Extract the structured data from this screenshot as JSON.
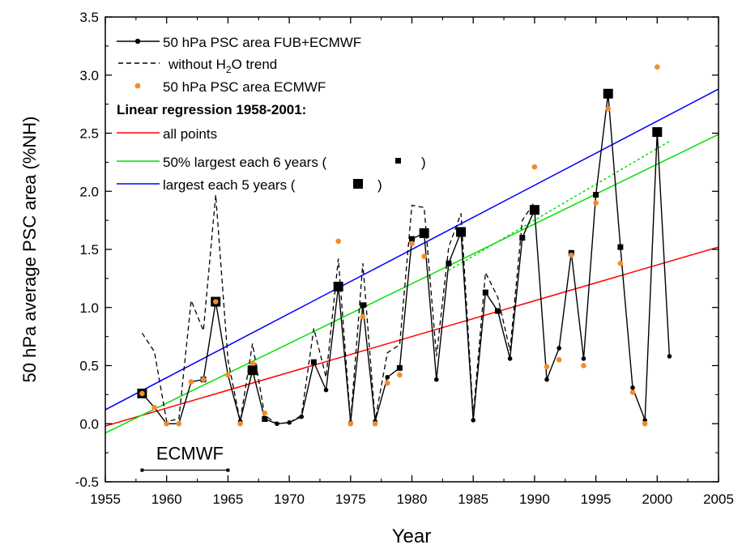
{
  "chart_data": {
    "type": "line",
    "xlabel": "Year",
    "ylabel": "50 hPa average PSC area (%NH)",
    "xlim": [
      1955,
      2005
    ],
    "ylim": [
      -0.5,
      3.5
    ],
    "x_ticks": [
      "1955",
      "1960",
      "1965",
      "1970",
      "1975",
      "1980",
      "1985",
      "1990",
      "1995",
      "2000",
      "2005"
    ],
    "y_ticks": [
      "-0.5",
      "0.0",
      "0.5",
      "1.0",
      "1.5",
      "2.0",
      "2.5",
      "3.0",
      "3.5"
    ],
    "grid": false,
    "legend_position": "top-left",
    "legend": {
      "fub": "50 hPa PSC area FUB+ECMWF",
      "no_trend_prefix": "without H",
      "no_trend_sub": "2",
      "no_trend_suffix": "O trend",
      "ecmwf": "50 hPa PSC area ECMWF",
      "regression_title": "Linear regression 1958-2001:",
      "all_points": "all points",
      "largest6_prefix": "50% largest each 6 years (",
      "largest6_suffix": ")",
      "largest5_prefix": "largest each 5 years (",
      "largest5_suffix": ")"
    },
    "annotation": {
      "label": "ECMWF",
      "from": 1958,
      "to": 1965,
      "y": -0.4
    },
    "colors": {
      "series": "#000000",
      "ecmwf_dots": "#f28c28",
      "all_points": "#ff0000",
      "largest6": "#00e000",
      "largest5": "#0000ff"
    },
    "series": [
      {
        "name": "50 hPa PSC area FUB+ECMWF",
        "x": [
          1958,
          1959,
          1960,
          1961,
          1962,
          1963,
          1964,
          1965,
          1966,
          1967,
          1968,
          1969,
          1970,
          1971,
          1972,
          1973,
          1974,
          1975,
          1976,
          1977,
          1978,
          1979,
          1980,
          1981,
          1982,
          1983,
          1984,
          1985,
          1986,
          1987,
          1988,
          1989,
          1990,
          1991,
          1992,
          1993,
          1994,
          1995,
          1996,
          1997,
          1998,
          1999,
          2000,
          2001
        ],
        "y": [
          0.26,
          0.14,
          0.0,
          0.0,
          0.36,
          0.38,
          1.05,
          0.42,
          0.02,
          0.46,
          0.04,
          0.0,
          0.01,
          0.06,
          0.53,
          0.29,
          1.18,
          0.01,
          1.02,
          0.02,
          0.4,
          0.48,
          1.59,
          1.64,
          0.38,
          1.38,
          1.65,
          0.03,
          1.13,
          0.97,
          0.56,
          1.6,
          1.84,
          0.38,
          0.65,
          1.47,
          0.56,
          1.97,
          2.84,
          1.52,
          0.31,
          0.03,
          2.51,
          0.58
        ]
      },
      {
        "name": "without H2O trend",
        "x": [
          1958,
          1959,
          1960,
          1961,
          1962,
          1963,
          1964,
          1965,
          1966,
          1967,
          1968,
          1969,
          1970,
          1971,
          1972,
          1973,
          1974,
          1975,
          1976,
          1977,
          1978,
          1979,
          1980,
          1981,
          1982,
          1983,
          1984,
          1985,
          1986,
          1987,
          1988,
          1989,
          1990
        ],
        "y": [
          0.78,
          0.62,
          0.02,
          0.04,
          1.06,
          0.8,
          1.97,
          0.55,
          0.02,
          0.69,
          0.07,
          0.0,
          0.01,
          0.07,
          0.82,
          0.4,
          1.42,
          0.02,
          1.38,
          0.03,
          0.61,
          0.68,
          1.88,
          1.86,
          0.58,
          1.52,
          1.81,
          0.07,
          1.3,
          1.09,
          0.63,
          1.75,
          1.91
        ]
      },
      {
        "name": "50 hPa PSC area ECMWF",
        "x": [
          1958,
          1959,
          1960,
          1961,
          1962,
          1963,
          1964,
          1965,
          1966,
          1967,
          1968,
          1974,
          1975,
          1976,
          1977,
          1978,
          1979,
          1980,
          1981,
          1990,
          1991,
          1992,
          1993,
          1994,
          1995,
          1996,
          1997,
          1998,
          1999,
          2000
        ],
        "y": [
          0.26,
          0.14,
          0.0,
          0.0,
          0.36,
          0.38,
          1.05,
          0.42,
          0.0,
          0.52,
          0.09,
          1.57,
          0.0,
          0.92,
          0.0,
          0.35,
          0.42,
          1.55,
          1.44,
          2.21,
          0.49,
          0.55,
          1.45,
          0.5,
          1.9,
          2.71,
          1.38,
          0.27,
          0.0,
          3.07
        ]
      },
      {
        "name": "50% largest each 6 years",
        "x": [
          1958,
          1963,
          1964,
          1968,
          1972,
          1974,
          1976,
          1979,
          1980,
          1981,
          1983,
          1984,
          1986,
          1987,
          1989,
          1990,
          1993,
          1995,
          1996,
          1997,
          2000
        ],
        "y": [
          0.26,
          0.38,
          1.05,
          0.04,
          0.53,
          1.18,
          1.02,
          0.48,
          1.59,
          1.64,
          1.38,
          1.65,
          1.13,
          0.97,
          1.6,
          1.84,
          1.47,
          1.97,
          2.84,
          1.52,
          2.51
        ]
      },
      {
        "name": "largest each 5 years",
        "x": [
          1958,
          1964,
          1967,
          1974,
          1981,
          1984,
          1990,
          1996,
          2000
        ],
        "y": [
          0.26,
          1.05,
          0.46,
          1.18,
          1.64,
          1.65,
          1.84,
          2.84,
          2.51
        ]
      }
    ],
    "regressions": [
      {
        "name": "all points",
        "x": [
          1955,
          2005
        ],
        "y": [
          -0.02,
          1.52
        ]
      },
      {
        "name": "50% largest each 6 years",
        "x": [
          1955,
          2005
        ],
        "y": [
          -0.08,
          2.49
        ]
      },
      {
        "name": "50% largest each 6 years (without H2O trend)",
        "x": [
          1983,
          2001
        ],
        "y": [
          1.32,
          2.43
        ]
      },
      {
        "name": "largest each 5 years",
        "x": [
          1955,
          2005
        ],
        "y": [
          0.12,
          2.88
        ]
      }
    ]
  }
}
